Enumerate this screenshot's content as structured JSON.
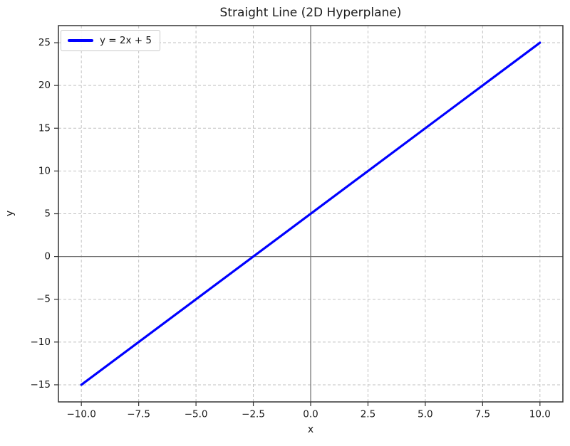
{
  "chart_data": {
    "type": "line",
    "title": "Straight Line (2D Hyperplane)",
    "xlabel": "x",
    "ylabel": "y",
    "xlim": [
      -11,
      11
    ],
    "ylim": [
      -17,
      27
    ],
    "xticks": [
      -10.0,
      -7.5,
      -5.0,
      -2.5,
      0.0,
      2.5,
      5.0,
      7.5,
      10.0
    ],
    "xtick_labels": [
      "−10.0",
      "−7.5",
      "−5.0",
      "−2.5",
      "0.0",
      "2.5",
      "5.0",
      "7.5",
      "10.0"
    ],
    "yticks": [
      -15,
      -10,
      -5,
      0,
      5,
      10,
      15,
      20,
      25
    ],
    "ytick_labels": [
      "−15",
      "−10",
      "−5",
      "0",
      "5",
      "10",
      "15",
      "20",
      "25"
    ],
    "grid": true,
    "grid_style": "dashed",
    "zero_axis_lines": true,
    "legend_position": "upper left",
    "series": [
      {
        "name": "y = 2x + 5",
        "equation": "y = 2x + 5",
        "slope": 2,
        "intercept": 5,
        "color": "#0000ff",
        "x": [
          -10,
          10
        ],
        "y": [
          -15,
          25
        ]
      }
    ],
    "colors": {
      "line": "#0000ff",
      "grid": "#c2c2c2",
      "spine": "#333333",
      "zero_axis": "#6e6e6e",
      "text": "#1a1a1a",
      "background": "#ffffff",
      "legend_border": "#c9c9c9"
    }
  }
}
